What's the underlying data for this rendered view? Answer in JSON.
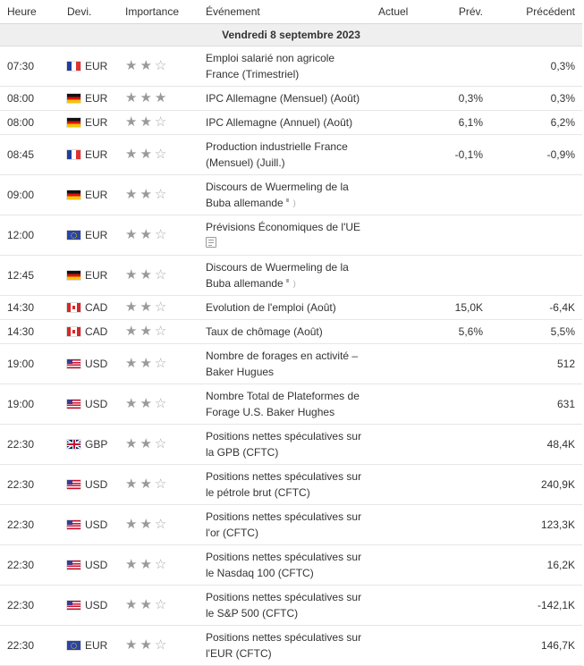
{
  "header": {
    "time": "Heure",
    "currency": "Devi.",
    "importance": "Importance",
    "event": "Événement",
    "actual": "Actuel",
    "forecast": "Prév.",
    "previous": "Précédent"
  },
  "date_label": "Vendredi 8 septembre 2023",
  "rows": [
    {
      "time": "07:30",
      "flag": "fr",
      "currency": "EUR",
      "stars": 2,
      "event": "Emploi salarié non agricole France (Trimestriel)",
      "icon": "",
      "actual": "",
      "forecast": "",
      "previous": "0,3%"
    },
    {
      "time": "08:00",
      "flag": "de",
      "currency": "EUR",
      "stars": 3,
      "event": "IPC Allemagne (Mensuel) (Août)",
      "icon": "",
      "actual": "",
      "forecast": "0,3%",
      "previous": "0,3%"
    },
    {
      "time": "08:00",
      "flag": "de",
      "currency": "EUR",
      "stars": 2,
      "event": "IPC Allemagne (Annuel) (Août)",
      "icon": "",
      "actual": "",
      "forecast": "6,1%",
      "previous": "6,2%"
    },
    {
      "time": "08:45",
      "flag": "fr",
      "currency": "EUR",
      "stars": 2,
      "event": "Production industrielle France (Mensuel) (Juill.)",
      "icon": "",
      "actual": "",
      "forecast": "-0,1%",
      "previous": "-0,9%"
    },
    {
      "time": "09:00",
      "flag": "de",
      "currency": "EUR",
      "stars": 2,
      "event": "Discours de Wuermeling de la Buba allemande",
      "icon": "speaker",
      "actual": "",
      "forecast": "",
      "previous": ""
    },
    {
      "time": "12:00",
      "flag": "eu",
      "currency": "EUR",
      "stars": 2,
      "event": "Prévisions Économiques de l'UE",
      "icon": "document",
      "actual": "",
      "forecast": "",
      "previous": ""
    },
    {
      "time": "12:45",
      "flag": "de",
      "currency": "EUR",
      "stars": 2,
      "event": "Discours de Wuermeling de la Buba allemande",
      "icon": "speaker",
      "actual": "",
      "forecast": "",
      "previous": ""
    },
    {
      "time": "14:30",
      "flag": "ca",
      "currency": "CAD",
      "stars": 2,
      "event": "Evolution de l'emploi (Août)",
      "icon": "",
      "actual": "",
      "forecast": "15,0K",
      "previous": "-6,4K"
    },
    {
      "time": "14:30",
      "flag": "ca",
      "currency": "CAD",
      "stars": 2,
      "event": "Taux de chômage (Août)",
      "icon": "",
      "actual": "",
      "forecast": "5,6%",
      "previous": "5,5%"
    },
    {
      "time": "19:00",
      "flag": "us",
      "currency": "USD",
      "stars": 2,
      "event": "Nombre de forages en activité – Baker Hugues",
      "icon": "",
      "actual": "",
      "forecast": "",
      "previous": "512"
    },
    {
      "time": "19:00",
      "flag": "us",
      "currency": "USD",
      "stars": 2,
      "event": "Nombre Total de Plateformes de Forage U.S. Baker Hughes",
      "icon": "",
      "actual": "",
      "forecast": "",
      "previous": "631"
    },
    {
      "time": "22:30",
      "flag": "gb",
      "currency": "GBP",
      "stars": 2,
      "event": "Positions nettes spéculatives sur la GPB (CFTC)",
      "icon": "",
      "actual": "",
      "forecast": "",
      "previous": "48,4K"
    },
    {
      "time": "22:30",
      "flag": "us",
      "currency": "USD",
      "stars": 2,
      "event": "Positions nettes spéculatives sur le pétrole brut (CFTC)",
      "icon": "",
      "actual": "",
      "forecast": "",
      "previous": "240,9K"
    },
    {
      "time": "22:30",
      "flag": "us",
      "currency": "USD",
      "stars": 2,
      "event": "Positions nettes spéculatives sur l'or (CFTC)",
      "icon": "",
      "actual": "",
      "forecast": "",
      "previous": "123,3K"
    },
    {
      "time": "22:30",
      "flag": "us",
      "currency": "USD",
      "stars": 2,
      "event": "Positions nettes spéculatives sur le Nasdaq 100 (CFTC)",
      "icon": "",
      "actual": "",
      "forecast": "",
      "previous": "16,2K"
    },
    {
      "time": "22:30",
      "flag": "us",
      "currency": "USD",
      "stars": 2,
      "event": "Positions nettes spéculatives sur le S&P 500 (CFTC)",
      "icon": "",
      "actual": "",
      "forecast": "",
      "previous": "-142,1K"
    },
    {
      "time": "22:30",
      "flag": "eu",
      "currency": "EUR",
      "stars": 2,
      "event": "Positions nettes spéculatives sur l'EUR (CFTC)",
      "icon": "",
      "actual": "",
      "forecast": "",
      "previous": "146,7K"
    }
  ]
}
